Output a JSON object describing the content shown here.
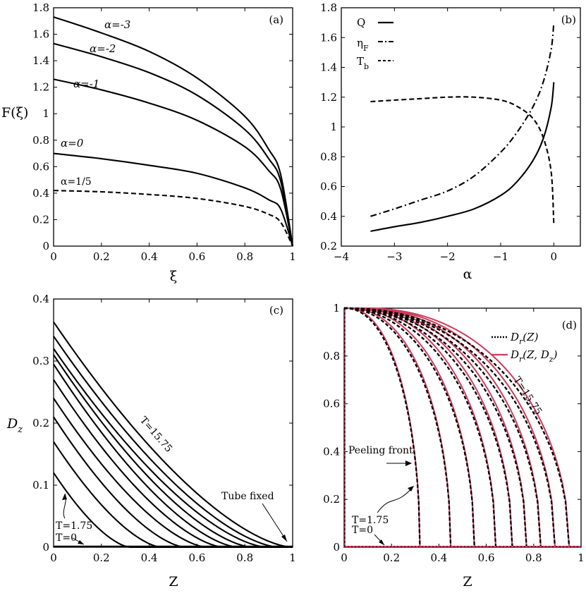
{
  "chart_data": [
    {
      "panel": "(a)",
      "type": "line",
      "xlabel": "ξ",
      "ylabel": "F(ξ)",
      "xlim": [
        0,
        1
      ],
      "ylim": [
        0,
        1.8
      ],
      "xticks": [
        "0",
        "0.2",
        "0.4",
        "0.6",
        "0.8",
        "1"
      ],
      "yticks": [
        "0",
        "0.2",
        "0.4",
        "0.6",
        "0.8",
        "1",
        "1.2",
        "1.4",
        "1.6",
        "1.8"
      ],
      "series": [
        {
          "name": "α=-3",
          "style": "solid",
          "x": [
            0,
            0.2,
            0.4,
            0.6,
            0.8,
            0.9,
            0.95,
            1
          ],
          "y": [
            1.73,
            1.61,
            1.47,
            1.27,
            0.98,
            0.73,
            0.54,
            0
          ]
        },
        {
          "name": "α=-2",
          "style": "solid",
          "x": [
            0,
            0.2,
            0.4,
            0.6,
            0.8,
            0.9,
            0.95,
            1
          ],
          "y": [
            1.53,
            1.43,
            1.31,
            1.14,
            0.88,
            0.66,
            0.49,
            0
          ]
        },
        {
          "name": "α=-1",
          "style": "solid",
          "x": [
            0,
            0.2,
            0.4,
            0.6,
            0.8,
            0.9,
            0.95,
            1
          ],
          "y": [
            1.26,
            1.18,
            1.08,
            0.95,
            0.75,
            0.57,
            0.43,
            0
          ]
        },
        {
          "name": "α=0",
          "style": "solid",
          "x": [
            0,
            0.2,
            0.4,
            0.6,
            0.8,
            0.9,
            0.95,
            1
          ],
          "y": [
            0.7,
            0.66,
            0.61,
            0.55,
            0.44,
            0.35,
            0.28,
            0
          ]
        },
        {
          "name": "α=1/5",
          "style": "dashed",
          "x": [
            0,
            0.2,
            0.4,
            0.6,
            0.8,
            0.9,
            0.95,
            1
          ],
          "y": [
            0.42,
            0.41,
            0.39,
            0.36,
            0.3,
            0.24,
            0.18,
            0
          ]
        }
      ]
    },
    {
      "panel": "(b)",
      "type": "line",
      "xlabel": "α",
      "ylabel": "",
      "xlim": [
        -4,
        0.5
      ],
      "ylim": [
        0.2,
        1.8
      ],
      "xticks": [
        "−4",
        "−3",
        "−2",
        "−1",
        "0"
      ],
      "yticks": [
        "0.2",
        "0.4",
        "0.6",
        "0.8",
        "1",
        "1.2",
        "1.4",
        "1.6",
        "1.8"
      ],
      "legend": [
        "Q",
        "η",
        "T"
      ],
      "legend_subscripts": [
        "F",
        "b"
      ],
      "series": [
        {
          "name": "Q",
          "style": "solid",
          "x": [
            -3.45,
            -3,
            -2.5,
            -2,
            -1.5,
            -1,
            -0.7,
            -0.4,
            -0.2,
            -0.05,
            0
          ],
          "y": [
            0.3,
            0.33,
            0.36,
            0.4,
            0.45,
            0.54,
            0.63,
            0.77,
            0.92,
            1.13,
            1.3
          ]
        },
        {
          "name": "η_F",
          "style": "dashdot",
          "x": [
            -3.45,
            -3,
            -2.5,
            -2,
            -1.5,
            -1,
            -0.7,
            -0.4,
            -0.2,
            -0.05,
            0
          ],
          "y": [
            0.4,
            0.45,
            0.51,
            0.57,
            0.67,
            0.83,
            0.96,
            1.13,
            1.3,
            1.52,
            1.7
          ]
        },
        {
          "name": "T_b",
          "style": "dashed",
          "x": [
            -3.45,
            -3,
            -2.5,
            -2,
            -1.5,
            -1,
            -0.7,
            -0.4,
            -0.2,
            -0.05,
            0
          ],
          "y": [
            1.17,
            1.18,
            1.19,
            1.2,
            1.2,
            1.18,
            1.14,
            1.06,
            0.93,
            0.7,
            0.35
          ]
        }
      ]
    },
    {
      "panel": "(c)",
      "type": "line",
      "xlabel": "Z",
      "ylabel": "D_z",
      "ylabel_main": "D",
      "ylabel_sub": "z",
      "xlim": [
        0,
        1
      ],
      "ylim": [
        0,
        0.4
      ],
      "xticks": [
        "0",
        "0.2",
        "0.4",
        "0.6",
        "0.8",
        "1"
      ],
      "yticks": [
        "0",
        "0.1",
        "0.2",
        "0.3",
        "0.4"
      ],
      "curve_family": {
        "description": "D_z profiles decaying to zero at peeling front",
        "D0": [
          0.12,
          0.17,
          0.21,
          0.24,
          0.27,
          0.295,
          0.31,
          0.32,
          0.34,
          0.363
        ],
        "end_Z": [
          0.32,
          0.45,
          0.55,
          0.64,
          0.71,
          0.77,
          0.83,
          0.89,
          0.94,
          0.995
        ]
      },
      "annotations": [
        "T=15.75",
        "Tube fixed",
        "T=1.75",
        "T=0"
      ]
    },
    {
      "panel": "(d)",
      "type": "line",
      "xlabel": "Z",
      "ylabel": "",
      "xlim": [
        0,
        1
      ],
      "ylim": [
        0,
        1
      ],
      "xticks": [
        "0",
        "0.2",
        "0.4",
        "0.6",
        "0.8",
        "1"
      ],
      "yticks": [
        "0",
        "0.2",
        "0.4",
        "0.6",
        "0.8",
        "1"
      ],
      "legend": [
        {
          "main": "D",
          "sub": "r",
          "args": "(Z)",
          "style": "dotted-black"
        },
        {
          "main": "D",
          "sub": "r",
          "args": "(Z, D",
          "args_sub": "z",
          "args_end": ")",
          "style": "solid-red"
        }
      ],
      "curve_family": {
        "description": "D_r profiles from 1 at Z=0 to 0 at peeling front",
        "end_Z": [
          0.32,
          0.45,
          0.55,
          0.64,
          0.71,
          0.77,
          0.83,
          0.89,
          0.95
        ]
      },
      "annotations": [
        "T=15.75",
        "Peeling front",
        "T=1.75",
        "T=0"
      ]
    }
  ],
  "panel_tags": {
    "a": "(a)",
    "b": "(b)",
    "c": "(c)",
    "d": "(d)"
  },
  "colors": {
    "axis": "#000000",
    "red_curve": "#d03a5a"
  }
}
